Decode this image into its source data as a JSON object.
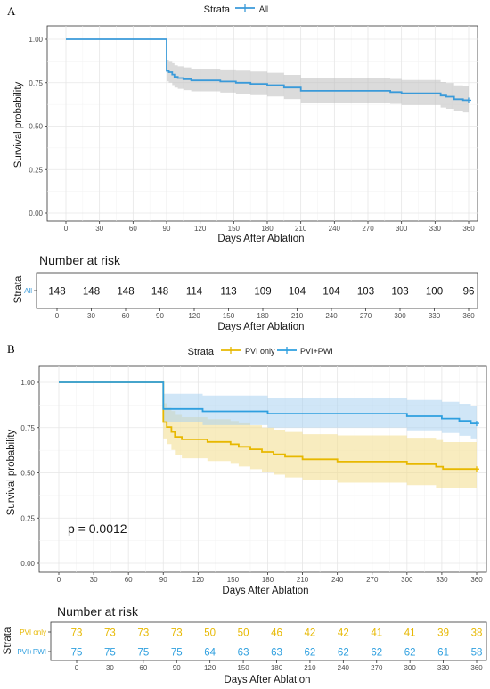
{
  "chart_data": [
    {
      "type": "line",
      "panel_label": "A",
      "legend_title": "Strata",
      "legend_position": "top",
      "xlabel": "Days After Ablation",
      "ylabel": "Survival probability",
      "xlim": [
        0,
        360
      ],
      "ylim": [
        0,
        1
      ],
      "x_ticks": [
        0,
        30,
        60,
        90,
        120,
        150,
        180,
        210,
        240,
        270,
        300,
        330,
        360
      ],
      "y_ticks": [
        0,
        0.25,
        0.5,
        0.75,
        1
      ],
      "y_tick_labels": [
        "0.00",
        "0.25",
        "0.50",
        "0.75",
        "1.00"
      ],
      "grid": true,
      "series": [
        {
          "name": "All",
          "color": "#3a9ad9",
          "ci_color": "#bdbdbd",
          "steps": [
            [
              0,
              1.0
            ],
            [
              90,
              0.818
            ],
            [
              92,
              0.81
            ],
            [
              95,
              0.797
            ],
            [
              97,
              0.784
            ],
            [
              100,
              0.777
            ],
            [
              105,
              0.77
            ],
            [
              112,
              0.763
            ],
            [
              138,
              0.757
            ],
            [
              152,
              0.75
            ],
            [
              165,
              0.743
            ],
            [
              180,
              0.736
            ],
            [
              195,
              0.722
            ],
            [
              210,
              0.703
            ],
            [
              290,
              0.696
            ],
            [
              300,
              0.689
            ],
            [
              335,
              0.676
            ],
            [
              340,
              0.669
            ],
            [
              347,
              0.655
            ],
            [
              355,
              0.649
            ],
            [
              360,
              0.649
            ]
          ],
          "ci_lower": [
            [
              0,
              1.0
            ],
            [
              90,
              0.758
            ],
            [
              92,
              0.75
            ],
            [
              95,
              0.736
            ],
            [
              97,
              0.722
            ],
            [
              100,
              0.715
            ],
            [
              105,
              0.707
            ],
            [
              112,
              0.7
            ],
            [
              138,
              0.693
            ],
            [
              152,
              0.685
            ],
            [
              165,
              0.678
            ],
            [
              180,
              0.67
            ],
            [
              195,
              0.656
            ],
            [
              210,
              0.636
            ],
            [
              290,
              0.628
            ],
            [
              300,
              0.621
            ],
            [
              335,
              0.607
            ],
            [
              340,
              0.6
            ],
            [
              347,
              0.585
            ],
            [
              355,
              0.579
            ],
            [
              360,
              0.579
            ]
          ],
          "ci_upper": [
            [
              0,
              1.0
            ],
            [
              90,
              0.882
            ],
            [
              92,
              0.875
            ],
            [
              95,
              0.862
            ],
            [
              97,
              0.85
            ],
            [
              100,
              0.844
            ],
            [
              105,
              0.838
            ],
            [
              112,
              0.831
            ],
            [
              138,
              0.826
            ],
            [
              152,
              0.819
            ],
            [
              165,
              0.814
            ],
            [
              180,
              0.807
            ],
            [
              195,
              0.795
            ],
            [
              210,
              0.778
            ],
            [
              290,
              0.772
            ],
            [
              300,
              0.765
            ],
            [
              335,
              0.754
            ],
            [
              340,
              0.748
            ],
            [
              347,
              0.735
            ],
            [
              355,
              0.73
            ],
            [
              360,
              0.73
            ]
          ]
        }
      ],
      "risk_table": {
        "title": "Number at risk",
        "ylabel": "Strata",
        "xlabel": "Days After Ablation",
        "x": [
          0,
          30,
          60,
          90,
          120,
          150,
          180,
          210,
          240,
          270,
          300,
          330,
          360
        ],
        "rows": [
          {
            "name": "All",
            "color": "#3a9ad9",
            "counts": [
              148,
              148,
              148,
              148,
              114,
              113,
              109,
              104,
              104,
              103,
              103,
              100,
              96
            ]
          }
        ]
      }
    },
    {
      "type": "line",
      "panel_label": "B",
      "legend_title": "Strata",
      "legend_position": "top",
      "xlabel": "Days After Ablation",
      "ylabel": "Survival probability",
      "xlim": [
        0,
        360
      ],
      "ylim": [
        0,
        1
      ],
      "x_ticks": [
        0,
        30,
        60,
        90,
        120,
        150,
        180,
        210,
        240,
        270,
        300,
        330,
        360
      ],
      "y_ticks": [
        0,
        0.25,
        0.5,
        0.75,
        1
      ],
      "y_tick_labels": [
        "0.00",
        "0.25",
        "0.50",
        "0.75",
        "1.00"
      ],
      "grid": true,
      "annotation": "p = 0.0012",
      "series": [
        {
          "name": "PVI only",
          "color": "#e7b800",
          "ci_color": "#f3dc8a",
          "steps": [
            [
              0,
              1.0
            ],
            [
              90,
              0.781
            ],
            [
              93,
              0.753
            ],
            [
              97,
              0.726
            ],
            [
              100,
              0.699
            ],
            [
              106,
              0.685
            ],
            [
              120,
              0.685
            ],
            [
              128,
              0.671
            ],
            [
              148,
              0.658
            ],
            [
              155,
              0.644
            ],
            [
              165,
              0.63
            ],
            [
              175,
              0.616
            ],
            [
              185,
              0.603
            ],
            [
              195,
              0.589
            ],
            [
              210,
              0.575
            ],
            [
              240,
              0.562
            ],
            [
              300,
              0.548
            ],
            [
              325,
              0.534
            ],
            [
              331,
              0.521
            ],
            [
              360,
              0.521
            ]
          ],
          "ci_lower": [
            [
              0,
              1.0
            ],
            [
              90,
              0.69
            ],
            [
              93,
              0.659
            ],
            [
              97,
              0.627
            ],
            [
              100,
              0.596
            ],
            [
              106,
              0.581
            ],
            [
              120,
              0.581
            ],
            [
              128,
              0.565
            ],
            [
              148,
              0.55
            ],
            [
              155,
              0.535
            ],
            [
              165,
              0.52
            ],
            [
              175,
              0.505
            ],
            [
              185,
              0.49
            ],
            [
              195,
              0.475
            ],
            [
              210,
              0.461
            ],
            [
              240,
              0.446
            ],
            [
              300,
              0.432
            ],
            [
              325,
              0.418
            ],
            [
              331,
              0.418
            ],
            [
              360,
              0.418
            ]
          ],
          "ci_upper": [
            [
              0,
              1.0
            ],
            [
              90,
              0.884
            ],
            [
              93,
              0.86
            ],
            [
              97,
              0.842
            ],
            [
              100,
              0.82
            ],
            [
              106,
              0.808
            ],
            [
              120,
              0.808
            ],
            [
              128,
              0.797
            ],
            [
              148,
              0.787
            ],
            [
              155,
              0.774
            ],
            [
              165,
              0.763
            ],
            [
              175,
              0.75
            ],
            [
              185,
              0.739
            ],
            [
              195,
              0.726
            ],
            [
              210,
              0.714
            ],
            [
              240,
              0.707
            ],
            [
              300,
              0.694
            ],
            [
              325,
              0.682
            ],
            [
              331,
              0.67
            ],
            [
              360,
              0.67
            ]
          ]
        },
        {
          "name": "PVI+PWI",
          "color": "#2e9fdf",
          "ci_color": "#a9d2f0",
          "steps": [
            [
              0,
              1.0
            ],
            [
              90,
              0.853
            ],
            [
              124,
              0.84
            ],
            [
              180,
              0.827
            ],
            [
              300,
              0.813
            ],
            [
              330,
              0.8
            ],
            [
              345,
              0.787
            ],
            [
              355,
              0.773
            ],
            [
              360,
              0.773
            ]
          ],
          "ci_lower": [
            [
              0,
              1.0
            ],
            [
              90,
              0.78
            ],
            [
              124,
              0.764
            ],
            [
              180,
              0.75
            ],
            [
              300,
              0.735
            ],
            [
              330,
              0.72
            ],
            [
              345,
              0.705
            ],
            [
              355,
              0.69
            ],
            [
              360,
              0.69
            ]
          ],
          "ci_upper": [
            [
              0,
              1.0
            ],
            [
              90,
              0.937
            ],
            [
              124,
              0.927
            ],
            [
              180,
              0.915
            ],
            [
              300,
              0.903
            ],
            [
              330,
              0.893
            ],
            [
              345,
              0.882
            ],
            [
              355,
              0.871
            ],
            [
              360,
              0.871
            ]
          ]
        }
      ],
      "risk_table": {
        "title": "Number at risk",
        "ylabel": "Strata",
        "xlabel": "Days After Ablation",
        "x": [
          0,
          30,
          60,
          90,
          120,
          150,
          180,
          210,
          240,
          270,
          300,
          330,
          360
        ],
        "rows": [
          {
            "name": "PVI only",
            "color": "#e7b800",
            "counts": [
              73,
              73,
              73,
              73,
              50,
              50,
              46,
              42,
              42,
              41,
              41,
              39,
              38
            ]
          },
          {
            "name": "PVI+PWI",
            "color": "#2e9fdf",
            "counts": [
              75,
              75,
              75,
              75,
              64,
              63,
              63,
              62,
              62,
              62,
              62,
              61,
              58
            ]
          }
        ]
      }
    }
  ]
}
